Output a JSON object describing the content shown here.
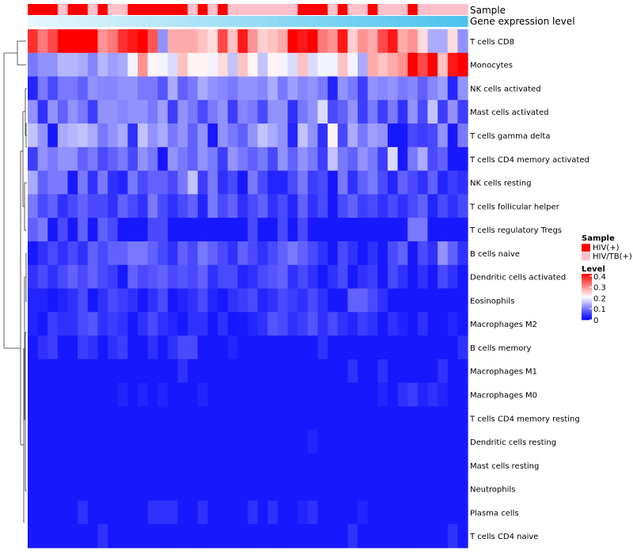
{
  "chart_data": {
    "type": "heatmap",
    "title": "",
    "columns": 44,
    "annotations": [
      {
        "name": "Sample",
        "pattern": [
          0,
          0,
          0,
          1,
          0,
          0,
          1,
          0,
          1,
          1,
          0,
          0,
          0,
          0,
          0,
          0,
          1,
          0,
          1,
          0,
          1,
          1,
          1,
          1,
          1,
          1,
          1,
          0,
          0,
          0,
          1,
          0,
          1,
          1,
          0,
          1,
          1,
          1,
          0,
          1,
          1,
          1,
          1,
          1
        ]
      },
      {
        "name": "Gene expression level",
        "gradient": [
          "#e6f6fc",
          "#4cc3ee"
        ]
      }
    ],
    "rows": [
      {
        "label": "T cells CD8",
        "values": [
          0.38,
          0.32,
          0.36,
          0.42,
          0.42,
          0.42,
          0.42,
          0.3,
          0.32,
          0.38,
          0.4,
          0.42,
          0.35,
          0.12,
          0.28,
          0.28,
          0.28,
          0.26,
          0.24,
          0.36,
          0.26,
          0.4,
          0.3,
          0.25,
          0.26,
          0.28,
          0.42,
          0.4,
          0.42,
          0.32,
          0.3,
          0.4,
          0.25,
          0.3,
          0.28,
          0.36,
          0.4,
          0.28,
          0.3,
          0.24,
          0.14,
          0.14,
          0.24,
          0.12
        ]
      },
      {
        "label": "Monocytes",
        "values": [
          0.1,
          0.12,
          0.12,
          0.15,
          0.15,
          0.14,
          0.11,
          0.15,
          0.13,
          0.14,
          0.2,
          0.3,
          0.22,
          0.2,
          0.18,
          0.26,
          0.22,
          0.22,
          0.2,
          0.24,
          0.16,
          0.26,
          0.22,
          0.16,
          0.22,
          0.2,
          0.18,
          0.26,
          0.18,
          0.2,
          0.2,
          0.26,
          0.2,
          0.14,
          0.28,
          0.26,
          0.28,
          0.3,
          0.42,
          0.36,
          0.42,
          0.26,
          0.4,
          0.42
        ]
      },
      {
        "label": "NK cells activated",
        "values": [
          0.03,
          0.1,
          0.06,
          0.1,
          0.1,
          0.08,
          0.12,
          0.11,
          0.11,
          0.12,
          0.12,
          0.1,
          0.1,
          0.07,
          0.14,
          0.08,
          0.1,
          0.14,
          0.12,
          0.11,
          0.1,
          0.12,
          0.12,
          0.11,
          0.14,
          0.1,
          0.13,
          0.11,
          0.12,
          0.1,
          0.03,
          0.12,
          0.1,
          0.05,
          0.12,
          0.11,
          0.12,
          0.1,
          0.11,
          0.08,
          0.11,
          0.13,
          0.03,
          0.12
        ]
      },
      {
        "label": "Mast cells activated",
        "values": [
          0.12,
          0.04,
          0.12,
          0.08,
          0.12,
          0.1,
          0.05,
          0.12,
          0.12,
          0.11,
          0.12,
          0.12,
          0.1,
          0.13,
          0.05,
          0.12,
          0.1,
          0.06,
          0.1,
          0.12,
          0.05,
          0.11,
          0.1,
          0.06,
          0.12,
          0.12,
          0.04,
          0.1,
          0.12,
          0.18,
          0.06,
          0.08,
          0.12,
          0.05,
          0.1,
          0.05,
          0.1,
          0.04,
          0.12,
          0.06,
          0.16,
          0.05,
          0.12,
          0.05
        ]
      },
      {
        "label": "T cells gamma delta",
        "values": [
          0.16,
          0.12,
          0.02,
          0.14,
          0.15,
          0.16,
          0.14,
          0.1,
          0.12,
          0.14,
          0.04,
          0.16,
          0.12,
          0.14,
          0.1,
          0.12,
          0.08,
          0.12,
          0.02,
          0.12,
          0.1,
          0.08,
          0.12,
          0.16,
          0.14,
          0.12,
          0.03,
          0.16,
          0.12,
          0.04,
          0.22,
          0.06,
          0.14,
          0.1,
          0.13,
          0.12,
          0.02,
          0.02,
          0.06,
          0.05,
          0.06,
          0.12,
          0.02,
          0.1
        ]
      },
      {
        "label": "T cells CD4 memory activated",
        "values": [
          0.05,
          0.12,
          0.1,
          0.12,
          0.12,
          0.08,
          0.1,
          0.06,
          0.08,
          0.1,
          0.06,
          0.12,
          0.1,
          0.02,
          0.12,
          0.1,
          0.08,
          0.12,
          0.1,
          0.05,
          0.12,
          0.1,
          0.08,
          0.1,
          0.06,
          0.12,
          0.08,
          0.12,
          0.1,
          0.05,
          0.16,
          0.1,
          0.08,
          0.12,
          0.1,
          0.05,
          0.18,
          0.02,
          0.1,
          0.14,
          0.06,
          0.08,
          0.02,
          0.02
        ]
      },
      {
        "label": "NK cells resting",
        "values": [
          0.14,
          0.08,
          0.1,
          0.1,
          0.02,
          0.1,
          0.04,
          0.1,
          0.04,
          0.03,
          0.1,
          0.06,
          0.08,
          0.08,
          0.06,
          0.1,
          0.16,
          0.05,
          0.1,
          0.04,
          0.06,
          0.02,
          0.1,
          0.06,
          0.03,
          0.03,
          0.06,
          0.1,
          0.05,
          0.06,
          0.02,
          0.1,
          0.04,
          0.08,
          0.1,
          0.06,
          0.03,
          0.08,
          0.06,
          0.04,
          0.08,
          0.03,
          0.05,
          0.04
        ]
      },
      {
        "label": "T cells follicular helper",
        "values": [
          0.1,
          0.06,
          0.08,
          0.04,
          0.06,
          0.08,
          0.06,
          0.06,
          0.04,
          0.08,
          0.06,
          0.04,
          0.1,
          0.06,
          0.04,
          0.06,
          0.08,
          0.03,
          0.1,
          0.06,
          0.08,
          0.04,
          0.06,
          0.08,
          0.04,
          0.06,
          0.03,
          0.08,
          0.04,
          0.06,
          0.02,
          0.06,
          0.08,
          0.05,
          0.06,
          0.04,
          0.06,
          0.04,
          0.06,
          0.08,
          0.03,
          0.06,
          0.04,
          0.06
        ]
      },
      {
        "label": "T cells regulatory  Tregs",
        "values": [
          0.08,
          0.1,
          0.02,
          0.06,
          0.02,
          0.08,
          0.02,
          0.08,
          0.06,
          0.02,
          0.02,
          0.02,
          0.06,
          0.06,
          0.02,
          0.02,
          0.02,
          0.02,
          0.02,
          0.02,
          0.02,
          0.02,
          0.06,
          0.02,
          0.02,
          0.06,
          0.02,
          0.06,
          0.02,
          0.02,
          0.02,
          0.02,
          0.02,
          0.02,
          0.02,
          0.02,
          0.02,
          0.02,
          0.1,
          0.1,
          0.02,
          0.02,
          0.02,
          0.02
        ]
      },
      {
        "label": "B cells naive",
        "values": [
          0.02,
          0.04,
          0.06,
          0.04,
          0.06,
          0.04,
          0.08,
          0.06,
          0.08,
          0.08,
          0.1,
          0.1,
          0.08,
          0.06,
          0.04,
          0.08,
          0.06,
          0.1,
          0.08,
          0.06,
          0.04,
          0.08,
          0.06,
          0.04,
          0.06,
          0.08,
          0.1,
          0.08,
          0.06,
          0.04,
          0.02,
          0.06,
          0.04,
          0.02,
          0.04,
          0.02,
          0.06,
          0.08,
          0.02,
          0.06,
          0.04,
          0.12,
          0.08,
          0.04
        ]
      },
      {
        "label": "Dendritic cells activated",
        "values": [
          0.04,
          0.06,
          0.04,
          0.06,
          0.08,
          0.06,
          0.08,
          0.06,
          0.05,
          0.02,
          0.08,
          0.06,
          0.07,
          0.08,
          0.06,
          0.07,
          0.06,
          0.08,
          0.04,
          0.06,
          0.06,
          0.03,
          0.04,
          0.06,
          0.07,
          0.08,
          0.04,
          0.06,
          0.04,
          0.02,
          0.04,
          0.06,
          0.02,
          0.04,
          0.05,
          0.02,
          0.06,
          0.04,
          0.02,
          0.04,
          0.02,
          0.06,
          0.04,
          0.02
        ]
      },
      {
        "label": "Eosinophils",
        "values": [
          0.03,
          0.03,
          0.02,
          0.03,
          0.04,
          0.06,
          0.02,
          0.04,
          0.06,
          0.05,
          0.04,
          0.02,
          0.04,
          0.06,
          0.02,
          0.03,
          0.04,
          0.06,
          0.03,
          0.02,
          0.04,
          0.05,
          0.06,
          0.03,
          0.04,
          0.06,
          0.05,
          0.04,
          0.06,
          0.04,
          0.02,
          0.02,
          0.08,
          0.08,
          0.06,
          0.04,
          0.02,
          0.02,
          0.02,
          0.02,
          0.02,
          0.02,
          0.02,
          0.02
        ]
      },
      {
        "label": "Macrophages M2",
        "values": [
          0.03,
          0.02,
          0.05,
          0.04,
          0.04,
          0.06,
          0.07,
          0.04,
          0.05,
          0.04,
          0.02,
          0.04,
          0.06,
          0.04,
          0.03,
          0.02,
          0.04,
          0.04,
          0.02,
          0.04,
          0.02,
          0.02,
          0.03,
          0.04,
          0.07,
          0.06,
          0.04,
          0.05,
          0.07,
          0.04,
          0.06,
          0.04,
          0.03,
          0.05,
          0.04,
          0.02,
          0.04,
          0.03,
          0.02,
          0.04,
          0.02,
          0.02,
          0.03,
          0.02
        ]
      },
      {
        "label": "B cells memory",
        "values": [
          0.02,
          0.04,
          0.05,
          0.02,
          0.02,
          0.05,
          0.04,
          0.02,
          0.04,
          0.05,
          0.02,
          0.02,
          0.04,
          0.02,
          0.04,
          0.06,
          0.06,
          0.02,
          0.02,
          0.02,
          0.03,
          0.02,
          0.02,
          0.02,
          0.02,
          0.02,
          0.02,
          0.02,
          0.02,
          0.04,
          0.02,
          0.02,
          0.02,
          0.02,
          0.02,
          0.02,
          0.02,
          0.02,
          0.02,
          0.02,
          0.02,
          0.02,
          0.02,
          0.04
        ]
      },
      {
        "label": "Macrophages M1",
        "values": [
          0.02,
          0.02,
          0.02,
          0.02,
          0.02,
          0.02,
          0.02,
          0.02,
          0.02,
          0.02,
          0.02,
          0.02,
          0.02,
          0.02,
          0.02,
          0.04,
          0.02,
          0.02,
          0.02,
          0.02,
          0.02,
          0.02,
          0.02,
          0.02,
          0.02,
          0.02,
          0.02,
          0.02,
          0.02,
          0.02,
          0.02,
          0.02,
          0.04,
          0.02,
          0.02,
          0.04,
          0.02,
          0.02,
          0.02,
          0.02,
          0.02,
          0.04,
          0.02,
          0.02
        ]
      },
      {
        "label": "Macrophages M0",
        "values": [
          0.02,
          0.02,
          0.02,
          0.02,
          0.02,
          0.02,
          0.02,
          0.02,
          0.02,
          0.03,
          0.02,
          0.03,
          0.02,
          0.03,
          0.02,
          0.02,
          0.02,
          0.03,
          0.02,
          0.02,
          0.02,
          0.02,
          0.02,
          0.02,
          0.02,
          0.02,
          0.02,
          0.02,
          0.02,
          0.02,
          0.02,
          0.02,
          0.02,
          0.02,
          0.02,
          0.03,
          0.02,
          0.04,
          0.05,
          0.03,
          0.04,
          0.03,
          0.02,
          0.02
        ]
      },
      {
        "label": "T cells CD4 memory resting",
        "values": [
          0.02,
          0.02,
          0.02,
          0.02,
          0.02,
          0.02,
          0.02,
          0.02,
          0.02,
          0.02,
          0.02,
          0.02,
          0.02,
          0.02,
          0.02,
          0.02,
          0.02,
          0.02,
          0.02,
          0.02,
          0.02,
          0.02,
          0.02,
          0.02,
          0.02,
          0.02,
          0.02,
          0.02,
          0.02,
          0.02,
          0.02,
          0.02,
          0.02,
          0.02,
          0.02,
          0.02,
          0.02,
          0.02,
          0.02,
          0.02,
          0.02,
          0.02,
          0.02,
          0.02
        ]
      },
      {
        "label": "Dendritic cells resting",
        "values": [
          0.02,
          0.02,
          0.02,
          0.02,
          0.02,
          0.02,
          0.02,
          0.02,
          0.02,
          0.02,
          0.02,
          0.02,
          0.02,
          0.02,
          0.02,
          0.02,
          0.02,
          0.02,
          0.02,
          0.02,
          0.02,
          0.02,
          0.02,
          0.02,
          0.02,
          0.02,
          0.02,
          0.02,
          0.03,
          0.02,
          0.02,
          0.02,
          0.02,
          0.02,
          0.02,
          0.02,
          0.02,
          0.02,
          0.02,
          0.02,
          0.02,
          0.02,
          0.02,
          0.02
        ]
      },
      {
        "label": "Mast cells resting",
        "values": [
          0.02,
          0.02,
          0.02,
          0.02,
          0.02,
          0.02,
          0.02,
          0.02,
          0.02,
          0.02,
          0.02,
          0.02,
          0.02,
          0.02,
          0.02,
          0.02,
          0.02,
          0.02,
          0.02,
          0.02,
          0.02,
          0.02,
          0.02,
          0.02,
          0.02,
          0.02,
          0.02,
          0.02,
          0.02,
          0.02,
          0.02,
          0.02,
          0.02,
          0.02,
          0.02,
          0.02,
          0.02,
          0.02,
          0.02,
          0.02,
          0.02,
          0.02,
          0.02,
          0.02
        ]
      },
      {
        "label": "Neutrophils",
        "values": [
          0.02,
          0.02,
          0.02,
          0.02,
          0.02,
          0.02,
          0.02,
          0.02,
          0.02,
          0.02,
          0.02,
          0.02,
          0.02,
          0.02,
          0.02,
          0.02,
          0.02,
          0.02,
          0.02,
          0.02,
          0.02,
          0.02,
          0.02,
          0.02,
          0.02,
          0.02,
          0.02,
          0.02,
          0.02,
          0.02,
          0.02,
          0.02,
          0.02,
          0.02,
          0.02,
          0.02,
          0.02,
          0.02,
          0.02,
          0.02,
          0.02,
          0.02,
          0.02,
          0.02
        ]
      },
      {
        "label": "Plasma cells",
        "values": [
          0.02,
          0.02,
          0.02,
          0.02,
          0.02,
          0.04,
          0.02,
          0.02,
          0.02,
          0.02,
          0.02,
          0.02,
          0.04,
          0.04,
          0.04,
          0.02,
          0.02,
          0.04,
          0.02,
          0.02,
          0.02,
          0.02,
          0.04,
          0.02,
          0.04,
          0.02,
          0.02,
          0.03,
          0.04,
          0.02,
          0.02,
          0.02,
          0.02,
          0.03,
          0.02,
          0.02,
          0.02,
          0.02,
          0.02,
          0.02,
          0.02,
          0.02,
          0.02,
          0.02
        ]
      },
      {
        "label": "T cells CD4 naive",
        "values": [
          0.02,
          0.02,
          0.02,
          0.02,
          0.02,
          0.02,
          0.02,
          0.04,
          0.02,
          0.02,
          0.02,
          0.02,
          0.02,
          0.02,
          0.02,
          0.02,
          0.02,
          0.02,
          0.02,
          0.02,
          0.02,
          0.02,
          0.02,
          0.02,
          0.02,
          0.02,
          0.02,
          0.02,
          0.02,
          0.02,
          0.02,
          0.02,
          0.04,
          0.02,
          0.02,
          0.02,
          0.02,
          0.02,
          0.02,
          0.02,
          0.02,
          0.02,
          0.04,
          0.02
        ]
      }
    ],
    "legend": {
      "sample": {
        "title": "Sample",
        "items": [
          {
            "label": "HIV(+)",
            "color": "#ff0000"
          },
          {
            "label": "HIV/TB(+)",
            "color": "#ffc0cb"
          }
        ]
      },
      "level": {
        "title": "Level",
        "ticks": [
          "0.4",
          "0.3",
          "0.2",
          "0.1",
          "0"
        ],
        "tick_values": [
          0.4,
          0.3,
          0.2,
          0.1,
          0
        ],
        "range": [
          0,
          0.42
        ]
      }
    },
    "color_scale": {
      "low": "#0000ff",
      "mid": "#ffffff",
      "high": "#ff0000",
      "mid_value": 0.21
    }
  }
}
